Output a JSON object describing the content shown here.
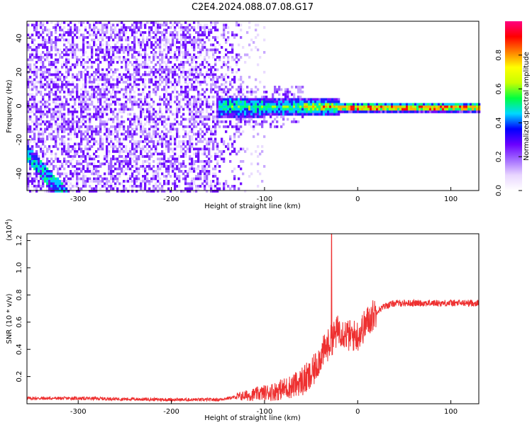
{
  "title": "C2E4.2024.088.07.08.G17",
  "chart_data": [
    {
      "type": "heatmap",
      "xlabel": "Height of straight line (km)",
      "ylabel": "Frequency (Hz)",
      "xlim": [
        -355,
        130
      ],
      "ylim": [
        -50,
        50
      ],
      "xticks": [
        -300,
        -200,
        -100,
        0,
        100
      ],
      "yticks": [
        -40,
        -20,
        0,
        20,
        40
      ],
      "colorbar": {
        "label": "Normalized spectral amplitude",
        "range": [
          0,
          1
        ],
        "ticks": [
          "0.0",
          "0.2",
          "0.4",
          "0.6",
          "0.8"
        ],
        "colors": [
          "#ffffff",
          "#e9d6ff",
          "#a36bff",
          "#6a00ff",
          "#0000ff",
          "#00d8ff",
          "#00ff40",
          "#c8ff00",
          "#ffff00",
          "#ff8000",
          "#ff0000",
          "#ff0080"
        ]
      },
      "description_regions": {
        "noise_region_x": [
          -355,
          -130
        ],
        "signal_start_x": -150,
        "signal_center_freq": 0,
        "signal_band_halfwidth_hz": 4
      }
    },
    {
      "type": "line",
      "xlabel": "Height of straight line (km)",
      "ylabel": "SNR (10 * v/v)",
      "y_multiplier_label": "(x10",
      "y_multiplier_exp": "4",
      "y_multiplier_close": ")",
      "xlim": [
        -355,
        130
      ],
      "ylim": [
        0,
        1.25
      ],
      "xticks": [
        -300,
        -200,
        -100,
        0,
        100
      ],
      "yticks": [
        0.2,
        0.4,
        0.6,
        0.8,
        1.0,
        1.2
      ],
      "ytick_labels": [
        "0.2",
        "0.4",
        "0.6",
        "0.8",
        "1.0",
        "1.2"
      ],
      "series": [
        {
          "color": "#ee3030",
          "x": [
            -355,
            -300,
            -250,
            -200,
            -150,
            -130,
            -110,
            -90,
            -70,
            -50,
            -40,
            -30,
            -25,
            -20,
            -10,
            0,
            10,
            20,
            30,
            40,
            60,
            80,
            100,
            110,
            130
          ],
          "y": [
            0.04,
            0.04,
            0.035,
            0.03,
            0.03,
            0.05,
            0.07,
            0.09,
            0.13,
            0.2,
            0.35,
            0.45,
            0.5,
            0.55,
            0.5,
            0.5,
            0.6,
            0.68,
            0.72,
            0.74,
            0.74,
            0.74,
            0.74,
            0.74,
            0.74
          ]
        }
      ],
      "spike": {
        "x": -28,
        "y": 1.25
      }
    }
  ]
}
